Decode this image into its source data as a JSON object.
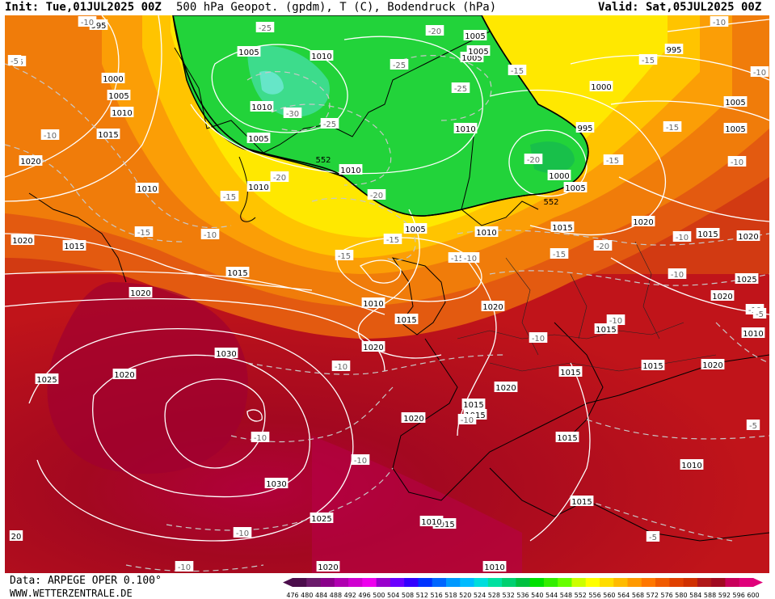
{
  "header": {
    "init": "Init: Tue,01JUL2025 00Z",
    "title": "500 hPa Geopot. (gpdm), T (C), Bodendruck (hPa)",
    "valid": "Valid: Sat,05JUL2025 00Z"
  },
  "footer": {
    "source": "Data: ARPEGE OPER 0.100°",
    "website": "WWW.WETTERZENTRALE.DE"
  },
  "colorbar": {
    "ticks": [
      "476",
      "480",
      "484",
      "488",
      "492",
      "496",
      "500",
      "504",
      "508",
      "512",
      "516",
      "518",
      "520",
      "524",
      "528",
      "532",
      "536",
      "540",
      "544",
      "548",
      "552",
      "556",
      "560",
      "564",
      "568",
      "572",
      "576",
      "580",
      "584",
      "588",
      "592",
      "596",
      "600"
    ],
    "colors": [
      "#4b0d4b",
      "#6a1b6a",
      "#8a008a",
      "#b000b0",
      "#d000d0",
      "#ee00ee",
      "#9900cc",
      "#6a00ff",
      "#3300ff",
      "#0033ff",
      "#0066ff",
      "#0099ff",
      "#00bbff",
      "#00dddd",
      "#00e0a0",
      "#00d070",
      "#00c040",
      "#00e000",
      "#33ee00",
      "#66ff00",
      "#ccff00",
      "#ffff00",
      "#ffdd00",
      "#ffbb00",
      "#ff9900",
      "#ff7700",
      "#f05a00",
      "#e04000",
      "#d03000",
      "#b01818",
      "#a00a20",
      "#c8005a",
      "#e0007a"
    ]
  },
  "map_labels": {
    "pressure": [
      {
        "text": "995"
      },
      {
        "text": "1005"
      },
      {
        "text": "1000"
      },
      {
        "text": "1005"
      },
      {
        "text": "1010"
      },
      {
        "text": "1015"
      },
      {
        "text": "1020"
      },
      {
        "text": "1010"
      },
      {
        "text": "1015"
      },
      {
        "text": "1020"
      },
      {
        "text": "1005"
      },
      {
        "text": "1005"
      },
      {
        "text": "1010"
      },
      {
        "text": "1010"
      },
      {
        "text": "1005"
      },
      {
        "text": "1010"
      },
      {
        "text": "1010"
      },
      {
        "text": "1005"
      },
      {
        "text": "1005"
      },
      {
        "text": "1010"
      },
      {
        "text": "995"
      },
      {
        "text": "1000"
      },
      {
        "text": "1005"
      },
      {
        "text": "995"
      },
      {
        "text": "1000"
      },
      {
        "text": "1005"
      },
      {
        "text": "1010"
      },
      {
        "text": "1015"
      },
      {
        "text": "1020"
      },
      {
        "text": "1015"
      },
      {
        "text": "1020"
      },
      {
        "text": "1025"
      },
      {
        "text": "1030"
      },
      {
        "text": "1025"
      },
      {
        "text": "1030"
      },
      {
        "text": "1025"
      },
      {
        "text": "1020"
      },
      {
        "text": "1010"
      },
      {
        "text": "1015"
      },
      {
        "text": "1020"
      },
      {
        "text": "1020"
      },
      {
        "text": "1015"
      },
      {
        "text": "1015"
      },
      {
        "text": "1015"
      },
      {
        "text": "1020"
      },
      {
        "text": "1015"
      },
      {
        "text": "1010"
      },
      {
        "text": "1015"
      },
      {
        "text": "1020"
      },
      {
        "text": "1015"
      },
      {
        "text": "1010"
      },
      {
        "text": "1015"
      },
      {
        "text": "1010"
      },
      {
        "text": "1010"
      },
      {
        "text": "1020"
      },
      {
        "text": "1015"
      },
      {
        "text": "1020"
      },
      {
        "text": "1005"
      },
      {
        "text": "1015"
      },
      {
        "text": "1020"
      },
      {
        "text": "1015"
      },
      {
        "text": "1020"
      },
      {
        "text": "20"
      }
    ],
    "temperature": [
      {
        "text": "-10"
      },
      {
        "text": "-5"
      },
      {
        "text": "-10"
      },
      {
        "text": "-25"
      },
      {
        "text": "-20"
      },
      {
        "text": "-25"
      },
      {
        "text": "-25"
      },
      {
        "text": "-30"
      },
      {
        "text": "-25"
      },
      {
        "text": "-20"
      },
      {
        "text": "-20"
      },
      {
        "text": "-15"
      },
      {
        "text": "-15"
      },
      {
        "text": "-10"
      },
      {
        "text": "-15"
      },
      {
        "text": "-15"
      },
      {
        "text": "-15"
      },
      {
        "text": "-20"
      },
      {
        "text": "-15"
      },
      {
        "text": "-15"
      },
      {
        "text": "-15"
      },
      {
        "text": "-15"
      },
      {
        "text": "-10"
      },
      {
        "text": "-10"
      },
      {
        "text": "-10"
      },
      {
        "text": "-10"
      },
      {
        "text": "-10"
      },
      {
        "text": "-10"
      },
      {
        "text": "-10"
      },
      {
        "text": "-10"
      },
      {
        "text": "-10"
      },
      {
        "text": "-10"
      },
      {
        "text": "-10"
      },
      {
        "text": "-5"
      },
      {
        "text": "-5"
      },
      {
        "text": "-10"
      },
      {
        "text": "-10"
      },
      {
        "text": "-20"
      },
      {
        "text": "-15"
      },
      {
        "text": "-5"
      },
      {
        "text": "-10"
      },
      {
        "text": "-15"
      },
      {
        "text": "-10"
      },
      {
        "text": "-5"
      }
    ],
    "height": [
      {
        "text": "552"
      },
      {
        "text": "552"
      }
    ]
  }
}
